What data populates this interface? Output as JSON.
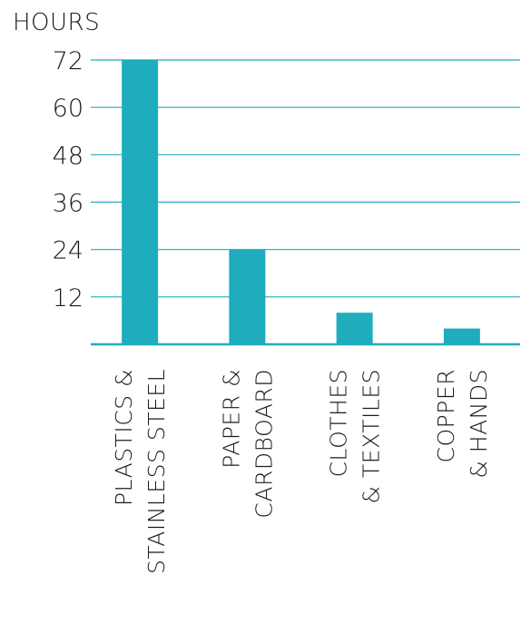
{
  "chart_data": {
    "type": "bar",
    "ylabel": "HOURS",
    "xlabel": "",
    "title": "",
    "categories": [
      [
        "PLASTICS &",
        "STAINLESS STEEL"
      ],
      [
        "PAPER &",
        "CARDBOARD"
      ],
      [
        "CLOTHES",
        "& TEXTILES"
      ],
      [
        "COPPER",
        "& HANDS"
      ]
    ],
    "values": [
      72,
      24,
      8,
      4
    ],
    "yticks": [
      "12",
      "24",
      "36",
      "48",
      "60",
      "72"
    ],
    "ylim": [
      0,
      72
    ],
    "grid": true,
    "colors": {
      "bar": "#1fadbd",
      "grid": "#1fadbd",
      "text": "#1a1a1a"
    }
  }
}
